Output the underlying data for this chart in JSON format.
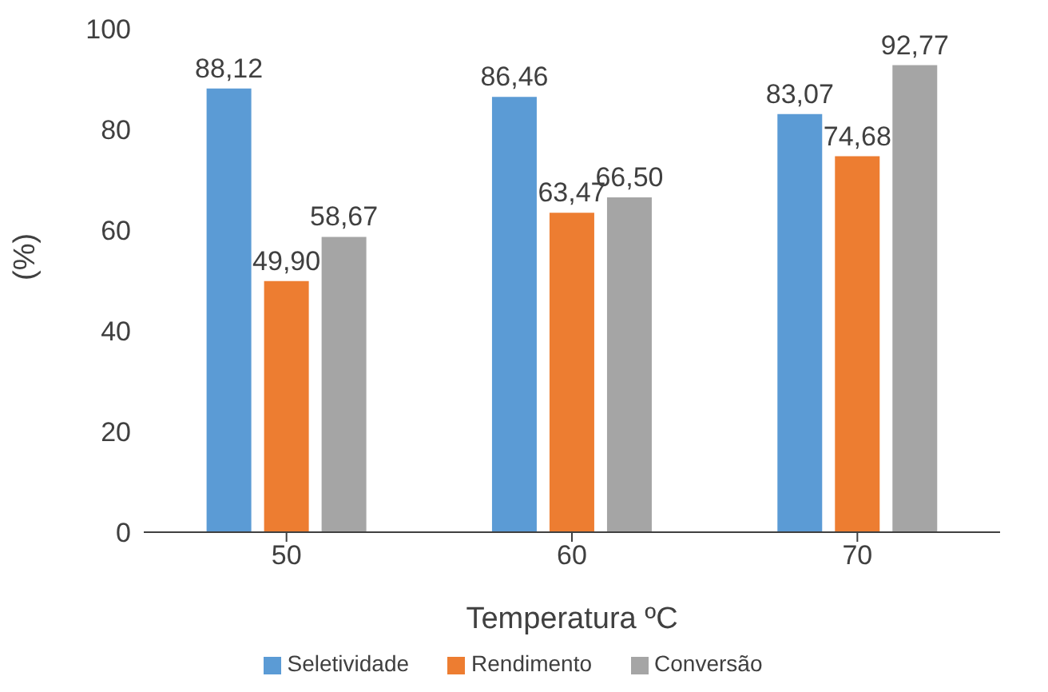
{
  "chart_data": {
    "type": "bar",
    "xlabel": "Temperatura ºC",
    "ylabel": "(%)",
    "categories": [
      "50",
      "60",
      "70"
    ],
    "series": [
      {
        "name": "Seletividade",
        "color": "#5b9bd5",
        "values": [
          88.12,
          86.46,
          83.07
        ],
        "value_labels": [
          "88,12",
          "86,46",
          "83,07"
        ]
      },
      {
        "name": "Rendimento",
        "color": "#ed7d31",
        "values": [
          49.9,
          63.47,
          74.68
        ],
        "value_labels": [
          "49,90",
          "63,47",
          "74,68"
        ]
      },
      {
        "name": "Conversão",
        "color": "#a5a5a5",
        "values": [
          58.67,
          66.5,
          92.77
        ],
        "value_labels": [
          "58,67",
          "66,50",
          "92,77"
        ]
      }
    ],
    "ylim": [
      0,
      100
    ],
    "yticks": [
      0,
      20,
      40,
      60,
      80,
      100
    ],
    "legend": "bottom"
  }
}
